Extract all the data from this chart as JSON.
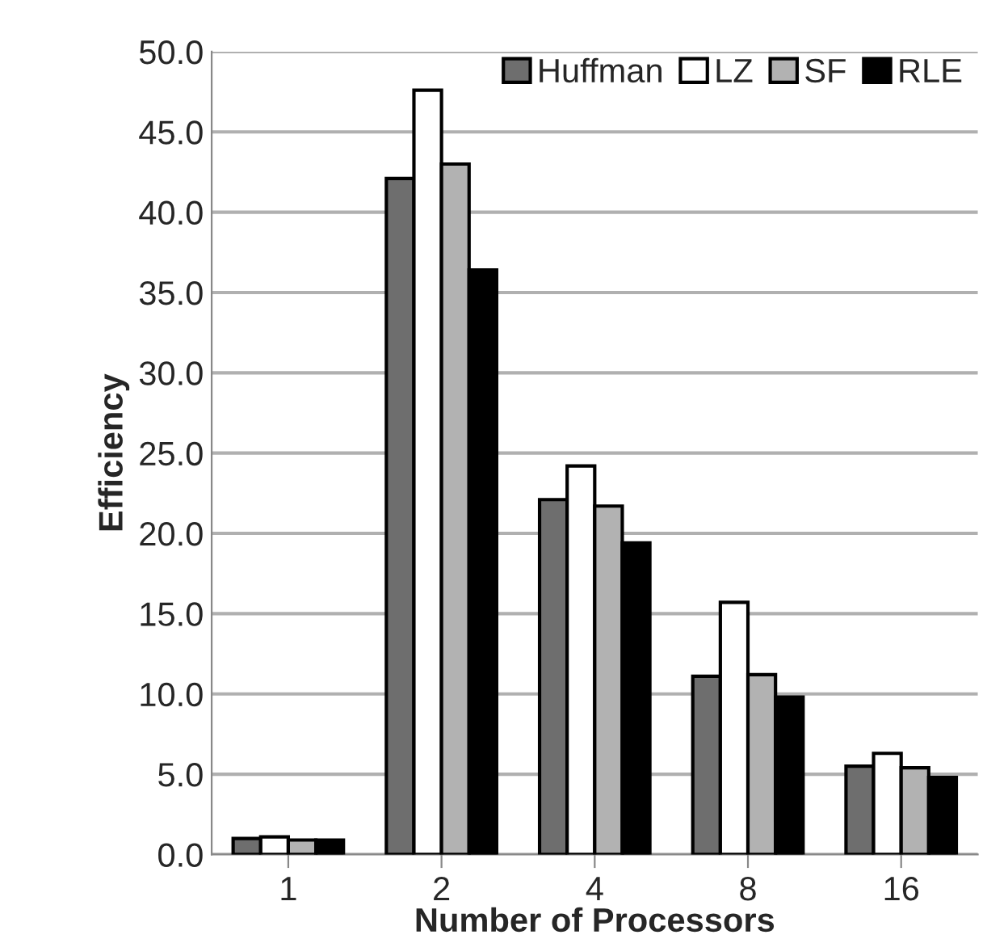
{
  "chart_data": {
    "type": "bar",
    "xlabel": "Number of Processors",
    "ylabel": "Efficiency",
    "categories": [
      "1",
      "2",
      "4",
      "8",
      "16"
    ],
    "series": [
      {
        "name": "Huffman",
        "color": "#6e6e6e",
        "values": [
          1.0,
          42.1,
          22.1,
          11.1,
          5.5
        ]
      },
      {
        "name": "LZ",
        "color": "#ffffff",
        "values": [
          1.1,
          47.6,
          24.2,
          15.7,
          6.3
        ]
      },
      {
        "name": "SF",
        "color": "#b2b2b2",
        "values": [
          0.9,
          43.0,
          21.7,
          11.2,
          5.4
        ]
      },
      {
        "name": "RLE",
        "color": "#000000",
        "values": [
          0.9,
          36.4,
          19.4,
          9.8,
          4.8
        ]
      }
    ],
    "ylim": [
      0,
      50
    ],
    "yticks": [
      {
        "value": 0,
        "label": "0.0"
      },
      {
        "value": 5,
        "label": "5.0"
      },
      {
        "value": 10,
        "label": "10.0"
      },
      {
        "value": 15,
        "label": "15.0"
      },
      {
        "value": 20,
        "label": "20.0"
      },
      {
        "value": 25,
        "label": "25.0"
      },
      {
        "value": 30,
        "label": "30.0"
      },
      {
        "value": 35,
        "label": "35.0"
      },
      {
        "value": 40,
        "label": "40.0"
      },
      {
        "value": 45,
        "label": "45.0"
      },
      {
        "value": 50,
        "label": "50.0"
      }
    ],
    "grid": "y",
    "legend": "top right"
  }
}
